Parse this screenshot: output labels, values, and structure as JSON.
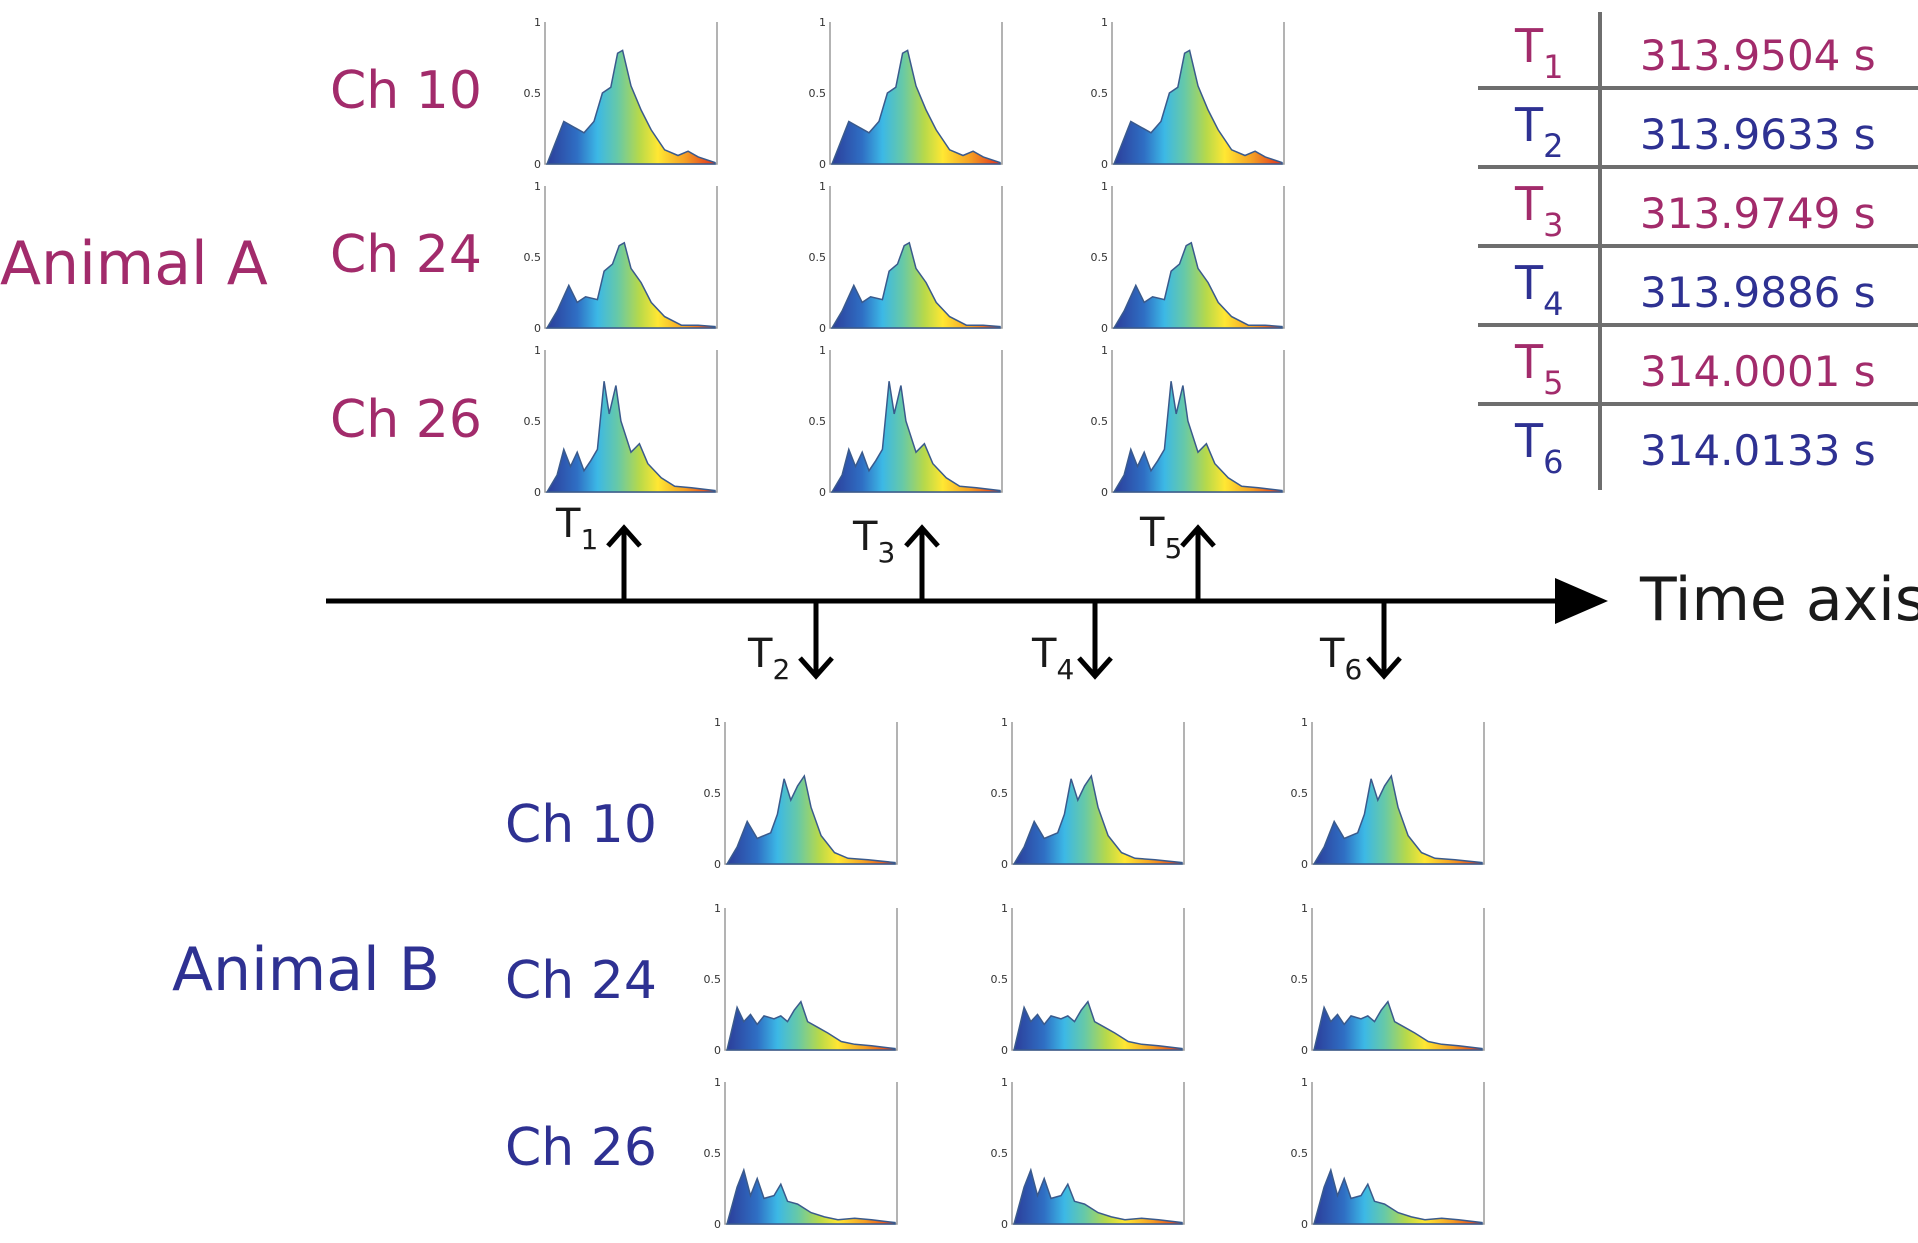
{
  "colors": {
    "animal_a": "#a22b6b",
    "animal_b": "#2e3192",
    "axis": "#000000",
    "table_rule": "#6e6e6e",
    "plot_frame": "#9a9a9a",
    "spectrum": [
      "#2c3e9a",
      "#2f6fc4",
      "#3cb8e6",
      "#66c9a8",
      "#b7d94a",
      "#ffe733",
      "#f5a024",
      "#e0301e"
    ]
  },
  "icons": {
    "up_arrow": "up-arrow-icon",
    "down_arrow": "down-arrow-icon",
    "axis_arrowhead": "arrowhead-icon"
  },
  "animal_a": {
    "label": "Animal A",
    "channels": [
      "Ch 10",
      "Ch 24",
      "Ch 26"
    ],
    "time_labels": [
      [
        "T",
        "1"
      ],
      [
        "T",
        "3"
      ],
      [
        "T",
        "5"
      ]
    ]
  },
  "animal_b": {
    "label": "Animal B",
    "channels": [
      "Ch 10",
      "Ch 24",
      "Ch 26"
    ],
    "time_labels": [
      [
        "T",
        "2"
      ],
      [
        "T",
        "4"
      ],
      [
        "T",
        "6"
      ]
    ]
  },
  "time_axis": {
    "label": "Time axis"
  },
  "mini_plot_ticks": [
    "0",
    "0.5",
    "1"
  ],
  "timing_table": [
    {
      "sym": "T",
      "sub": "1",
      "value": "313.9504 s",
      "animal": "a"
    },
    {
      "sym": "T",
      "sub": "2",
      "value": "313.9633 s",
      "animal": "b"
    },
    {
      "sym": "T",
      "sub": "3",
      "value": "313.9749 s",
      "animal": "a"
    },
    {
      "sym": "T",
      "sub": "4",
      "value": "313.9886 s",
      "animal": "b"
    },
    {
      "sym": "T",
      "sub": "5",
      "value": "314.0001 s",
      "animal": "a"
    },
    {
      "sym": "T",
      "sub": "6",
      "value": "314.0133 s",
      "animal": "b"
    }
  ],
  "spectra": {
    "a": [
      [
        [
          0,
          0
        ],
        [
          0.04,
          0.12
        ],
        [
          0.1,
          0.3
        ],
        [
          0.16,
          0.26
        ],
        [
          0.22,
          0.22
        ],
        [
          0.28,
          0.3
        ],
        [
          0.33,
          0.5
        ],
        [
          0.38,
          0.54
        ],
        [
          0.42,
          0.78
        ],
        [
          0.45,
          0.8
        ],
        [
          0.5,
          0.55
        ],
        [
          0.56,
          0.38
        ],
        [
          0.62,
          0.24
        ],
        [
          0.7,
          0.1
        ],
        [
          0.78,
          0.06
        ],
        [
          0.84,
          0.09
        ],
        [
          0.9,
          0.05
        ],
        [
          1,
          0.01
        ]
      ],
      [
        [
          0,
          0
        ],
        [
          0.06,
          0.12
        ],
        [
          0.13,
          0.3
        ],
        [
          0.18,
          0.18
        ],
        [
          0.23,
          0.22
        ],
        [
          0.3,
          0.2
        ],
        [
          0.34,
          0.4
        ],
        [
          0.39,
          0.45
        ],
        [
          0.43,
          0.58
        ],
        [
          0.46,
          0.6
        ],
        [
          0.5,
          0.42
        ],
        [
          0.56,
          0.32
        ],
        [
          0.62,
          0.18
        ],
        [
          0.7,
          0.08
        ],
        [
          0.8,
          0.02
        ],
        [
          0.9,
          0.02
        ],
        [
          1,
          0.01
        ]
      ],
      [
        [
          0,
          0
        ],
        [
          0.06,
          0.12
        ],
        [
          0.1,
          0.3
        ],
        [
          0.14,
          0.18
        ],
        [
          0.18,
          0.28
        ],
        [
          0.22,
          0.15
        ],
        [
          0.26,
          0.22
        ],
        [
          0.3,
          0.3
        ],
        [
          0.34,
          0.78
        ],
        [
          0.37,
          0.55
        ],
        [
          0.41,
          0.75
        ],
        [
          0.44,
          0.5
        ],
        [
          0.5,
          0.28
        ],
        [
          0.55,
          0.34
        ],
        [
          0.6,
          0.2
        ],
        [
          0.68,
          0.1
        ],
        [
          0.76,
          0.04
        ],
        [
          0.86,
          0.03
        ],
        [
          1,
          0.01
        ]
      ]
    ],
    "b": [
      [
        [
          0,
          0
        ],
        [
          0.06,
          0.12
        ],
        [
          0.12,
          0.3
        ],
        [
          0.18,
          0.18
        ],
        [
          0.26,
          0.22
        ],
        [
          0.3,
          0.35
        ],
        [
          0.34,
          0.6
        ],
        [
          0.38,
          0.45
        ],
        [
          0.42,
          0.55
        ],
        [
          0.46,
          0.62
        ],
        [
          0.5,
          0.4
        ],
        [
          0.56,
          0.2
        ],
        [
          0.64,
          0.08
        ],
        [
          0.72,
          0.04
        ],
        [
          0.84,
          0.03
        ],
        [
          1,
          0.01
        ]
      ],
      [
        [
          0,
          0
        ],
        [
          0.06,
          0.3
        ],
        [
          0.1,
          0.2
        ],
        [
          0.14,
          0.25
        ],
        [
          0.18,
          0.18
        ],
        [
          0.22,
          0.24
        ],
        [
          0.28,
          0.22
        ],
        [
          0.32,
          0.24
        ],
        [
          0.36,
          0.2
        ],
        [
          0.4,
          0.28
        ],
        [
          0.44,
          0.34
        ],
        [
          0.48,
          0.2
        ],
        [
          0.54,
          0.16
        ],
        [
          0.6,
          0.12
        ],
        [
          0.68,
          0.06
        ],
        [
          0.76,
          0.04
        ],
        [
          0.86,
          0.03
        ],
        [
          1,
          0.01
        ]
      ],
      [
        [
          0,
          0
        ],
        [
          0.06,
          0.26
        ],
        [
          0.1,
          0.38
        ],
        [
          0.14,
          0.2
        ],
        [
          0.18,
          0.32
        ],
        [
          0.22,
          0.18
        ],
        [
          0.28,
          0.2
        ],
        [
          0.32,
          0.28
        ],
        [
          0.36,
          0.16
        ],
        [
          0.42,
          0.14
        ],
        [
          0.5,
          0.08
        ],
        [
          0.58,
          0.05
        ],
        [
          0.66,
          0.03
        ],
        [
          0.76,
          0.04
        ],
        [
          0.86,
          0.03
        ],
        [
          1,
          0.01
        ]
      ]
    ]
  }
}
